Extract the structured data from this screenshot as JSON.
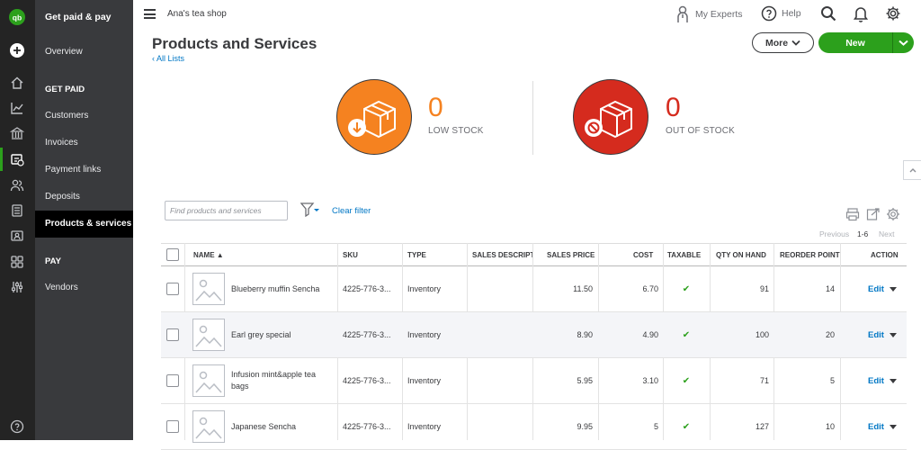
{
  "nav": {
    "title": "Get paid & pay",
    "items": [
      {
        "label": "Overview"
      },
      {
        "label": "GET PAID"
      },
      {
        "label": "Customers"
      },
      {
        "label": "Invoices"
      },
      {
        "label": "Payment links"
      },
      {
        "label": "Deposits"
      },
      {
        "label": "Products & services"
      },
      {
        "label": "PAY"
      },
      {
        "label": "Vendors"
      }
    ]
  },
  "topbar": {
    "shop_name": "Ana's tea shop",
    "my_experts": "My Experts",
    "help": "Help"
  },
  "page": {
    "title": "Products and Services",
    "back_link": "All Lists",
    "more_label": "More",
    "new_label": "New"
  },
  "stock": {
    "low": {
      "count": "0",
      "label": "LOW STOCK",
      "color": "#f58220"
    },
    "out": {
      "count": "0",
      "label": "OUT OF STOCK",
      "color": "#e0261b"
    }
  },
  "filter": {
    "search_placeholder": "Find products and services",
    "clear_filter": "Clear filter"
  },
  "pager": {
    "previous": "Previous",
    "range": "1-6",
    "next": "Next"
  },
  "table": {
    "headers": {
      "name": "NAME ▲",
      "sku": "SKU",
      "type": "TYPE",
      "sales_desc": "SALES DESCRIPT",
      "sales_price": "SALES PRICE",
      "cost": "COST",
      "taxable": "TAXABLE",
      "qty": "QTY ON HAND",
      "reorder": "REORDER POINT",
      "action": "ACTION"
    },
    "rows": [
      {
        "name": "Blueberry muffin Sencha",
        "sku": "4225-776-3...",
        "type": "Inventory",
        "sales_desc": "",
        "price": "11.50",
        "cost": "6.70",
        "taxable": "✔",
        "qty": "91",
        "reorder": "14",
        "action": "Edit"
      },
      {
        "name": "Earl grey special",
        "sku": "4225-776-3...",
        "type": "Inventory",
        "sales_desc": "",
        "price": "8.90",
        "cost": "4.90",
        "taxable": "✔",
        "qty": "100",
        "reorder": "20",
        "action": "Edit"
      },
      {
        "name": "Infusion mint&apple tea bags",
        "sku": "4225-776-3...",
        "type": "Inventory",
        "sales_desc": "",
        "price": "5.95",
        "cost": "3.10",
        "taxable": "✔",
        "qty": "71",
        "reorder": "5",
        "action": "Edit"
      },
      {
        "name": "Japanese Sencha",
        "sku": "4225-776-3...",
        "type": "Inventory",
        "sales_desc": "",
        "price": "9.95",
        "cost": "5",
        "taxable": "✔",
        "qty": "127",
        "reorder": "10",
        "action": "Edit"
      }
    ]
  },
  "colors": {
    "accent": "#2ca01c",
    "link": "#0077c5",
    "nav_bg": "#393a3d",
    "rail_bg": "#242424"
  }
}
